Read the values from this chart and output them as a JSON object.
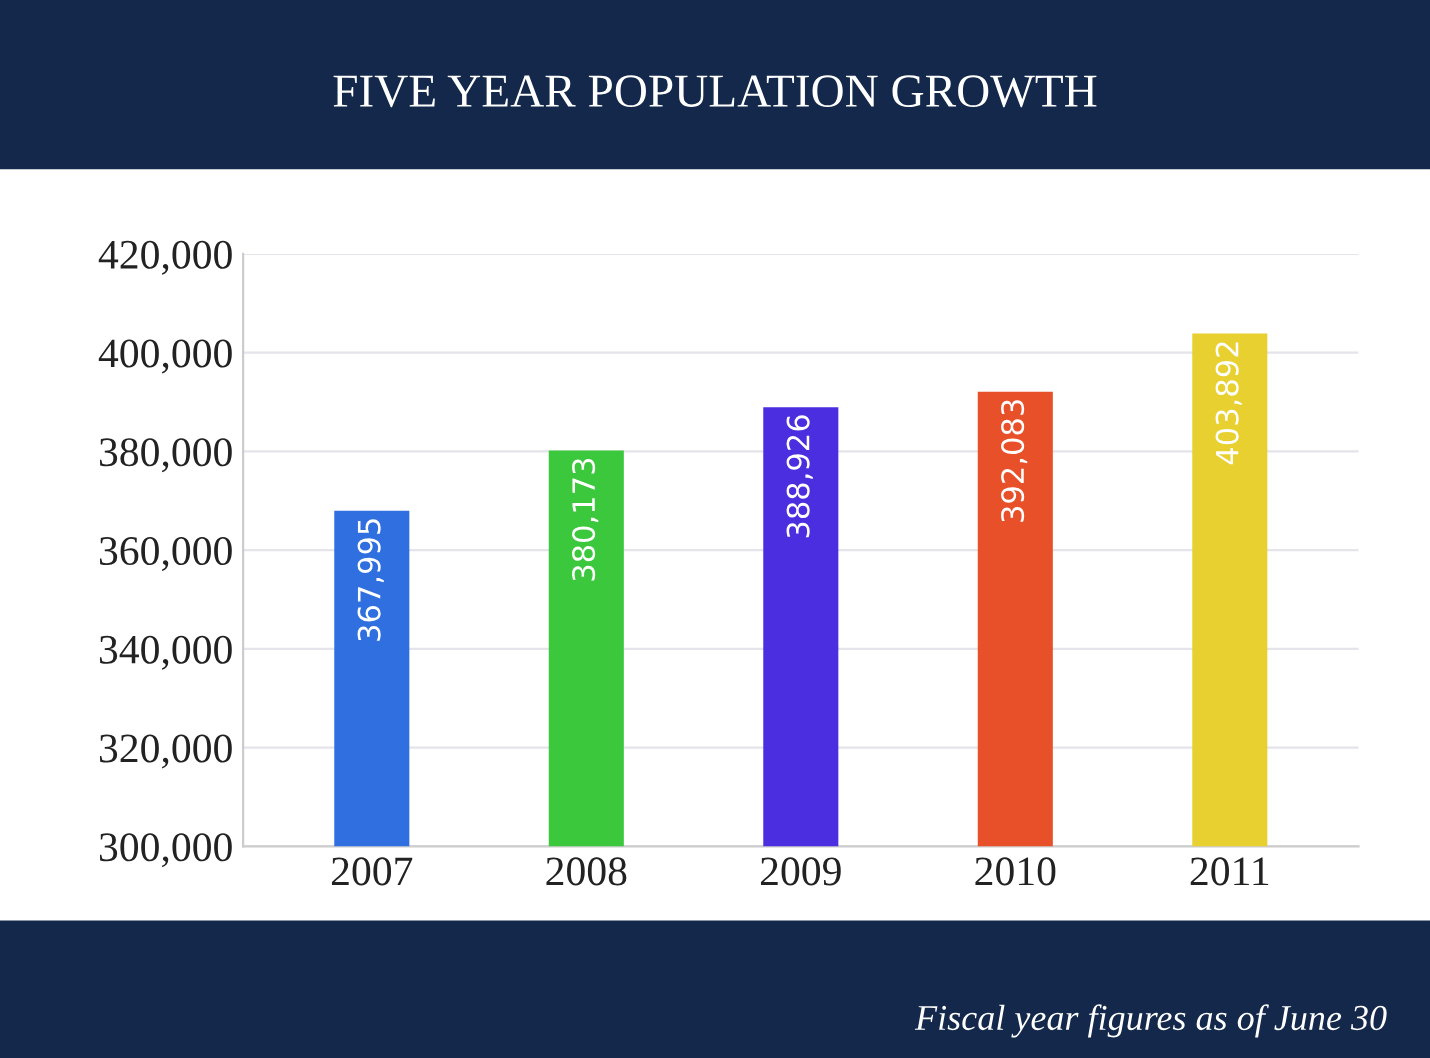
{
  "chart_data": {
    "type": "bar",
    "title": "FIVE YEAR POPULATION GROWTH",
    "categories": [
      "2007",
      "2008",
      "2009",
      "2010",
      "2011"
    ],
    "values": [
      367995,
      380173,
      388926,
      392083,
      403892
    ],
    "colors": [
      "#2f6fe0",
      "#3cc83c",
      "#4a2ee0",
      "#e8502a",
      "#e8d030"
    ],
    "value_labels": [
      "367,995",
      "380,173",
      "388,926",
      "392,083",
      "403,892"
    ],
    "ylim": [
      300000,
      420000
    ],
    "yticks": [
      {
        "value": 300000,
        "label": "300,000"
      },
      {
        "value": 320000,
        "label": "320,000"
      },
      {
        "value": 340000,
        "label": "340,000"
      },
      {
        "value": 360000,
        "label": "360,000"
      },
      {
        "value": 380000,
        "label": "380,000"
      },
      {
        "value": 400000,
        "label": "400,000"
      },
      {
        "value": 420000,
        "label": "420,000"
      }
    ],
    "grid": "y",
    "legend": false,
    "annotations": [
      "Fiscal year figures as of June 30"
    ]
  }
}
